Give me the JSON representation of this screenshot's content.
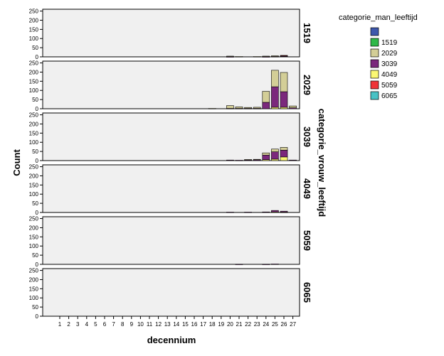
{
  "chart_data": {
    "type": "bar",
    "stacked": true,
    "xlabel": "decennium",
    "ylabel": "Count",
    "facet_title": "categorie_vrouw_leeftijd",
    "facets": [
      "1519",
      "2029",
      "3039",
      "4049",
      "5059",
      "6065"
    ],
    "ylim": [
      0,
      260
    ],
    "yticks": [
      0,
      50,
      100,
      150,
      200,
      250
    ],
    "x_ticks": [
      1,
      2,
      3,
      4,
      5,
      6,
      7,
      8,
      9,
      10,
      11,
      12,
      13,
      14,
      15,
      16,
      17,
      18,
      19,
      20,
      21,
      22,
      23,
      24,
      25,
      26,
      27
    ],
    "legend": {
      "title": "categorie_man_leeftijd",
      "entries": [
        {
          "label": "",
          "color": "#3e58ac"
        },
        {
          "label": "1519",
          "color": "#2eb848"
        },
        {
          "label": "2029",
          "color": "#d3ce97"
        },
        {
          "label": "3039",
          "color": "#7b287c"
        },
        {
          "label": "4049",
          "color": "#fbf873"
        },
        {
          "label": "5059",
          "color": "#ef3338"
        },
        {
          "label": "6065",
          "color": "#48c2c5"
        }
      ]
    },
    "panels": [
      {
        "facet": "1519",
        "bars": [
          {
            "x": 20,
            "stack": {
              "2029": 3,
              "3039": 1
            }
          },
          {
            "x": 21,
            "stack": {
              "2029": 2
            }
          },
          {
            "x": 23,
            "stack": {
              "2029": 2
            }
          },
          {
            "x": 24,
            "stack": {
              "2029": 3,
              "3039": 1
            }
          },
          {
            "x": 25,
            "stack": {
              "2029": 4,
              "3039": 2
            }
          },
          {
            "x": 26,
            "stack": {
              "2029": 3,
              "3039": 3,
              "5059": 2
            }
          }
        ]
      },
      {
        "facet": "2029",
        "bars": [
          {
            "x": 18,
            "stack": {
              "2029": 2
            }
          },
          {
            "x": 20,
            "stack": {
              "2029": 15,
              "3039": 2
            }
          },
          {
            "x": 21,
            "stack": {
              "2029": 8,
              "3039": 2
            }
          },
          {
            "x": 22,
            "stack": {
              "2029": 5,
              "3039": 2
            }
          },
          {
            "x": 23,
            "stack": {
              "2029": 6,
              "3039": 2
            }
          },
          {
            "x": 24,
            "stack": {
              "2029": 60,
              "3039": 35
            }
          },
          {
            "x": 25,
            "stack": {
              "4049": 8,
              "3039": 112,
              "2029": 90
            }
          },
          {
            "x": 26,
            "stack": {
              "4049": 8,
              "3039": 85,
              "2029": 105
            }
          },
          {
            "x": 27,
            "stack": {
              "2029": 10,
              "3039": 5
            }
          }
        ]
      },
      {
        "facet": "3039",
        "bars": [
          {
            "x": 20,
            "stack": {
              "3039": 3
            }
          },
          {
            "x": 21,
            "stack": {
              "3039": 2
            }
          },
          {
            "x": 22,
            "stack": {
              "3039": 4,
              "2029": 2
            }
          },
          {
            "x": 23,
            "stack": {
              "3039": 5,
              "2029": 2
            }
          },
          {
            "x": 24,
            "stack": {
              "4049": 5,
              "3039": 25,
              "2029": 12
            }
          },
          {
            "x": 25,
            "stack": {
              "4049": 8,
              "3039": 40,
              "2029": 15
            }
          },
          {
            "x": 26,
            "stack": {
              "4049": 20,
              "3039": 37,
              "2029": 15
            }
          },
          {
            "x": 27,
            "stack": {
              "3039": 3
            }
          }
        ]
      },
      {
        "facet": "4049",
        "bars": [
          {
            "x": 20,
            "stack": {
              "3039": 2
            }
          },
          {
            "x": 22,
            "stack": {
              "3039": 2
            }
          },
          {
            "x": 24,
            "stack": {
              "3039": 3
            }
          },
          {
            "x": 25,
            "stack": {
              "3039": 8,
              "4049": 3
            }
          },
          {
            "x": 26,
            "stack": {
              "3039": 5,
              "4049": 2
            }
          }
        ]
      },
      {
        "facet": "5059",
        "bars": [
          {
            "x": 21,
            "stack": {
              "3039": 1
            }
          },
          {
            "x": 24,
            "stack": {
              "3039": 1
            }
          },
          {
            "x": 25,
            "stack": {
              "3039": 2
            }
          }
        ]
      },
      {
        "facet": "6065",
        "bars": []
      }
    ]
  }
}
